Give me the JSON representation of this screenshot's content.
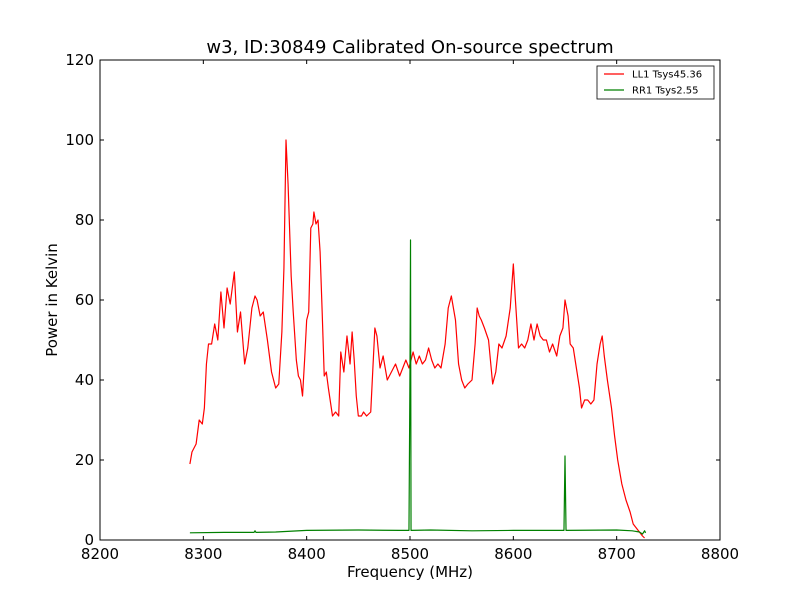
{
  "chart_data": {
    "type": "line",
    "title": "w3, ID:30849 Calibrated On-source spectrum",
    "xlabel": "Frequency (MHz)",
    "ylabel": "Power in Kelvin",
    "xlim": [
      8200,
      8800
    ],
    "ylim": [
      0,
      120
    ],
    "xticks": [
      8200,
      8300,
      8400,
      8500,
      8600,
      8700,
      8800
    ],
    "yticks": [
      0,
      20,
      40,
      60,
      80,
      100,
      120
    ],
    "grid": false,
    "legend_position": "top-right",
    "series": [
      {
        "name": "LL1 Tsys45.36",
        "color": "#ff0000",
        "points": [
          [
            8287,
            19
          ],
          [
            8289,
            22
          ],
          [
            8293,
            24
          ],
          [
            8296,
            30
          ],
          [
            8299,
            29
          ],
          [
            8301,
            33
          ],
          [
            8303,
            44
          ],
          [
            8305,
            49
          ],
          [
            8308,
            49
          ],
          [
            8311,
            54
          ],
          [
            8314,
            50
          ],
          [
            8317,
            62
          ],
          [
            8320,
            53
          ],
          [
            8323,
            63
          ],
          [
            8326,
            59
          ],
          [
            8330,
            67
          ],
          [
            8333,
            52
          ],
          [
            8336,
            57
          ],
          [
            8340,
            44
          ],
          [
            8343,
            48
          ],
          [
            8347,
            58
          ],
          [
            8350,
            61
          ],
          [
            8352,
            60
          ],
          [
            8355,
            56
          ],
          [
            8358,
            57
          ],
          [
            8362,
            50
          ],
          [
            8366,
            42
          ],
          [
            8370,
            38
          ],
          [
            8373,
            39
          ],
          [
            8376,
            52
          ],
          [
            8378,
            68
          ],
          [
            8380,
            100
          ],
          [
            8382,
            89
          ],
          [
            8385,
            66
          ],
          [
            8387,
            57
          ],
          [
            8390,
            45
          ],
          [
            8392,
            41
          ],
          [
            8394,
            40
          ],
          [
            8396,
            36
          ],
          [
            8398,
            45
          ],
          [
            8400,
            55
          ],
          [
            8402,
            57
          ],
          [
            8404,
            78
          ],
          [
            8406,
            79
          ],
          [
            8407,
            82
          ],
          [
            8409,
            79
          ],
          [
            8411,
            80
          ],
          [
            8413,
            72
          ],
          [
            8415,
            57
          ],
          [
            8417,
            41
          ],
          [
            8419,
            42
          ],
          [
            8421,
            38
          ],
          [
            8425,
            31
          ],
          [
            8428,
            32
          ],
          [
            8431,
            31
          ],
          [
            8433,
            47
          ],
          [
            8436,
            42
          ],
          [
            8439,
            51
          ],
          [
            8442,
            44
          ],
          [
            8444,
            52
          ],
          [
            8446,
            45
          ],
          [
            8448,
            36
          ],
          [
            8450,
            31
          ],
          [
            8453,
            31
          ],
          [
            8455,
            32
          ],
          [
            8458,
            31
          ],
          [
            8462,
            32
          ],
          [
            8466,
            53
          ],
          [
            8468,
            51
          ],
          [
            8471,
            43
          ],
          [
            8474,
            46
          ],
          [
            8478,
            40
          ],
          [
            8482,
            42
          ],
          [
            8486,
            44
          ],
          [
            8490,
            41
          ],
          [
            8493,
            43
          ],
          [
            8496,
            45
          ],
          [
            8499,
            43
          ],
          [
            8503,
            47
          ],
          [
            8506,
            44
          ],
          [
            8509,
            46
          ],
          [
            8512,
            44
          ],
          [
            8515,
            45
          ],
          [
            8518,
            48
          ],
          [
            8521,
            45
          ],
          [
            8524,
            43
          ],
          [
            8527,
            44
          ],
          [
            8530,
            43
          ],
          [
            8534,
            49
          ],
          [
            8537,
            58
          ],
          [
            8540,
            61
          ],
          [
            8544,
            55
          ],
          [
            8547,
            44
          ],
          [
            8550,
            40
          ],
          [
            8553,
            38
          ],
          [
            8556,
            39
          ],
          [
            8560,
            40
          ],
          [
            8563,
            49
          ],
          [
            8565,
            58
          ],
          [
            8567,
            56
          ],
          [
            8569,
            55
          ],
          [
            8572,
            53
          ],
          [
            8576,
            50
          ],
          [
            8580,
            39
          ],
          [
            8583,
            42
          ],
          [
            8586,
            49
          ],
          [
            8589,
            48
          ],
          [
            8593,
            51
          ],
          [
            8597,
            58
          ],
          [
            8600,
            69
          ],
          [
            8602,
            60
          ],
          [
            8605,
            48
          ],
          [
            8608,
            49
          ],
          [
            8611,
            48
          ],
          [
            8614,
            50
          ],
          [
            8617,
            54
          ],
          [
            8620,
            50
          ],
          [
            8623,
            54
          ],
          [
            8626,
            51
          ],
          [
            8629,
            50
          ],
          [
            8632,
            50
          ],
          [
            8635,
            47
          ],
          [
            8638,
            49
          ],
          [
            8642,
            46
          ],
          [
            8645,
            51
          ],
          [
            8648,
            53
          ],
          [
            8650,
            60
          ],
          [
            8653,
            56
          ],
          [
            8655,
            49
          ],
          [
            8658,
            48
          ],
          [
            8661,
            43
          ],
          [
            8664,
            38
          ],
          [
            8666,
            33
          ],
          [
            8669,
            35
          ],
          [
            8672,
            35
          ],
          [
            8675,
            34
          ],
          [
            8678,
            35
          ],
          [
            8681,
            44
          ],
          [
            8684,
            49
          ],
          [
            8686,
            51
          ],
          [
            8688,
            46
          ],
          [
            8691,
            40
          ],
          [
            8695,
            33
          ],
          [
            8698,
            26
          ],
          [
            8701,
            20
          ],
          [
            8705,
            14
          ],
          [
            8709,
            10
          ],
          [
            8713,
            7
          ],
          [
            8716,
            4
          ],
          [
            8719,
            3
          ],
          [
            8722,
            2
          ],
          [
            8725,
            1
          ],
          [
            8727,
            0.5
          ]
        ]
      },
      {
        "name": "RR1 Tsys2.55",
        "color": "#008000",
        "points": [
          [
            8287,
            1.8
          ],
          [
            8320,
            1.9
          ],
          [
            8349,
            1.9
          ],
          [
            8350,
            2.3
          ],
          [
            8351,
            1.9
          ],
          [
            8370,
            2.0
          ],
          [
            8400,
            2.4
          ],
          [
            8450,
            2.5
          ],
          [
            8490,
            2.4
          ],
          [
            8499,
            2.4
          ],
          [
            8500,
            43
          ],
          [
            8500.5,
            75
          ],
          [
            8501,
            2.4
          ],
          [
            8520,
            2.5
          ],
          [
            8560,
            2.3
          ],
          [
            8600,
            2.4
          ],
          [
            8649,
            2.4
          ],
          [
            8650,
            21
          ],
          [
            8651,
            2.4
          ],
          [
            8700,
            2.5
          ],
          [
            8715,
            2.3
          ],
          [
            8722,
            2.0
          ],
          [
            8725,
            1.5
          ],
          [
            8727,
            2.3
          ],
          [
            8728,
            1.8
          ]
        ]
      }
    ]
  }
}
